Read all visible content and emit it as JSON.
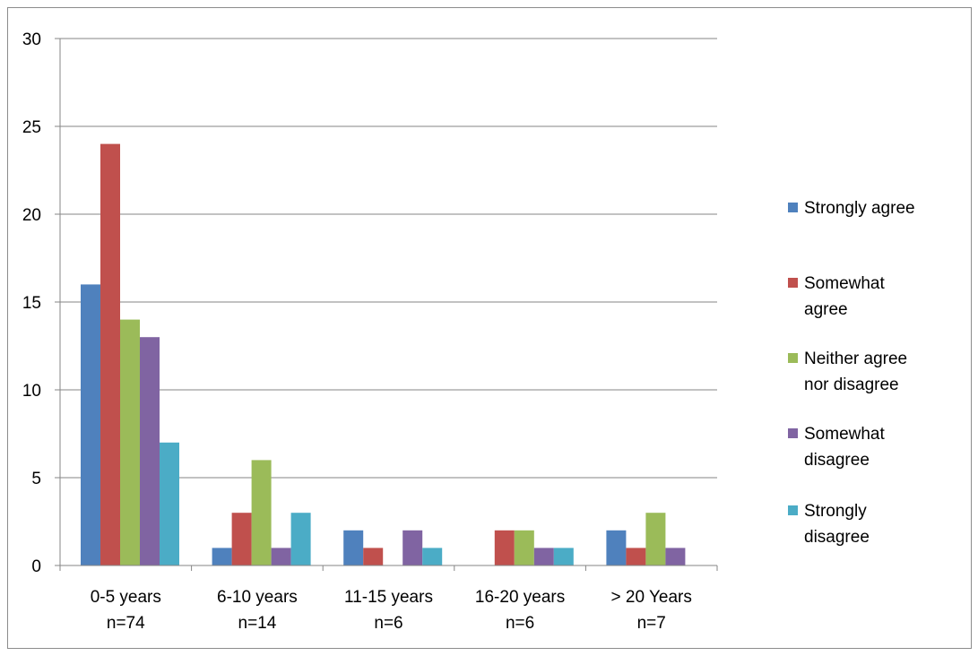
{
  "chart_data": {
    "type": "bar",
    "title": "",
    "xlabel": "",
    "ylabel": "",
    "ylim": [
      0,
      30
    ],
    "yticks": [
      0,
      5,
      10,
      15,
      20,
      25,
      30
    ],
    "grid": true,
    "legend_position": "right",
    "categories": [
      [
        "0-5 years",
        "n=74"
      ],
      [
        "6-10 years",
        "n=14"
      ],
      [
        "11-15 years",
        "n=6"
      ],
      [
        "16-20 years",
        "n=6"
      ],
      [
        "> 20 Years",
        "n=7"
      ]
    ],
    "series": [
      {
        "name": [
          "Strongly agree"
        ],
        "color": "#4f81bd",
        "values": [
          16,
          1,
          2,
          0,
          2
        ]
      },
      {
        "name": [
          "Somewhat",
          "agree"
        ],
        "color": "#c0504d",
        "values": [
          24,
          3,
          1,
          2,
          1
        ]
      },
      {
        "name": [
          "Neither agree",
          "nor disagree"
        ],
        "color": "#9bbb59",
        "values": [
          14,
          6,
          0,
          2,
          3
        ]
      },
      {
        "name": [
          "Somewhat",
          "disagree"
        ],
        "color": "#8064a2",
        "values": [
          13,
          1,
          2,
          1,
          1
        ]
      },
      {
        "name": [
          "Strongly",
          "disagree"
        ],
        "color": "#4bacc6",
        "values": [
          7,
          3,
          1,
          1,
          0
        ]
      }
    ]
  }
}
